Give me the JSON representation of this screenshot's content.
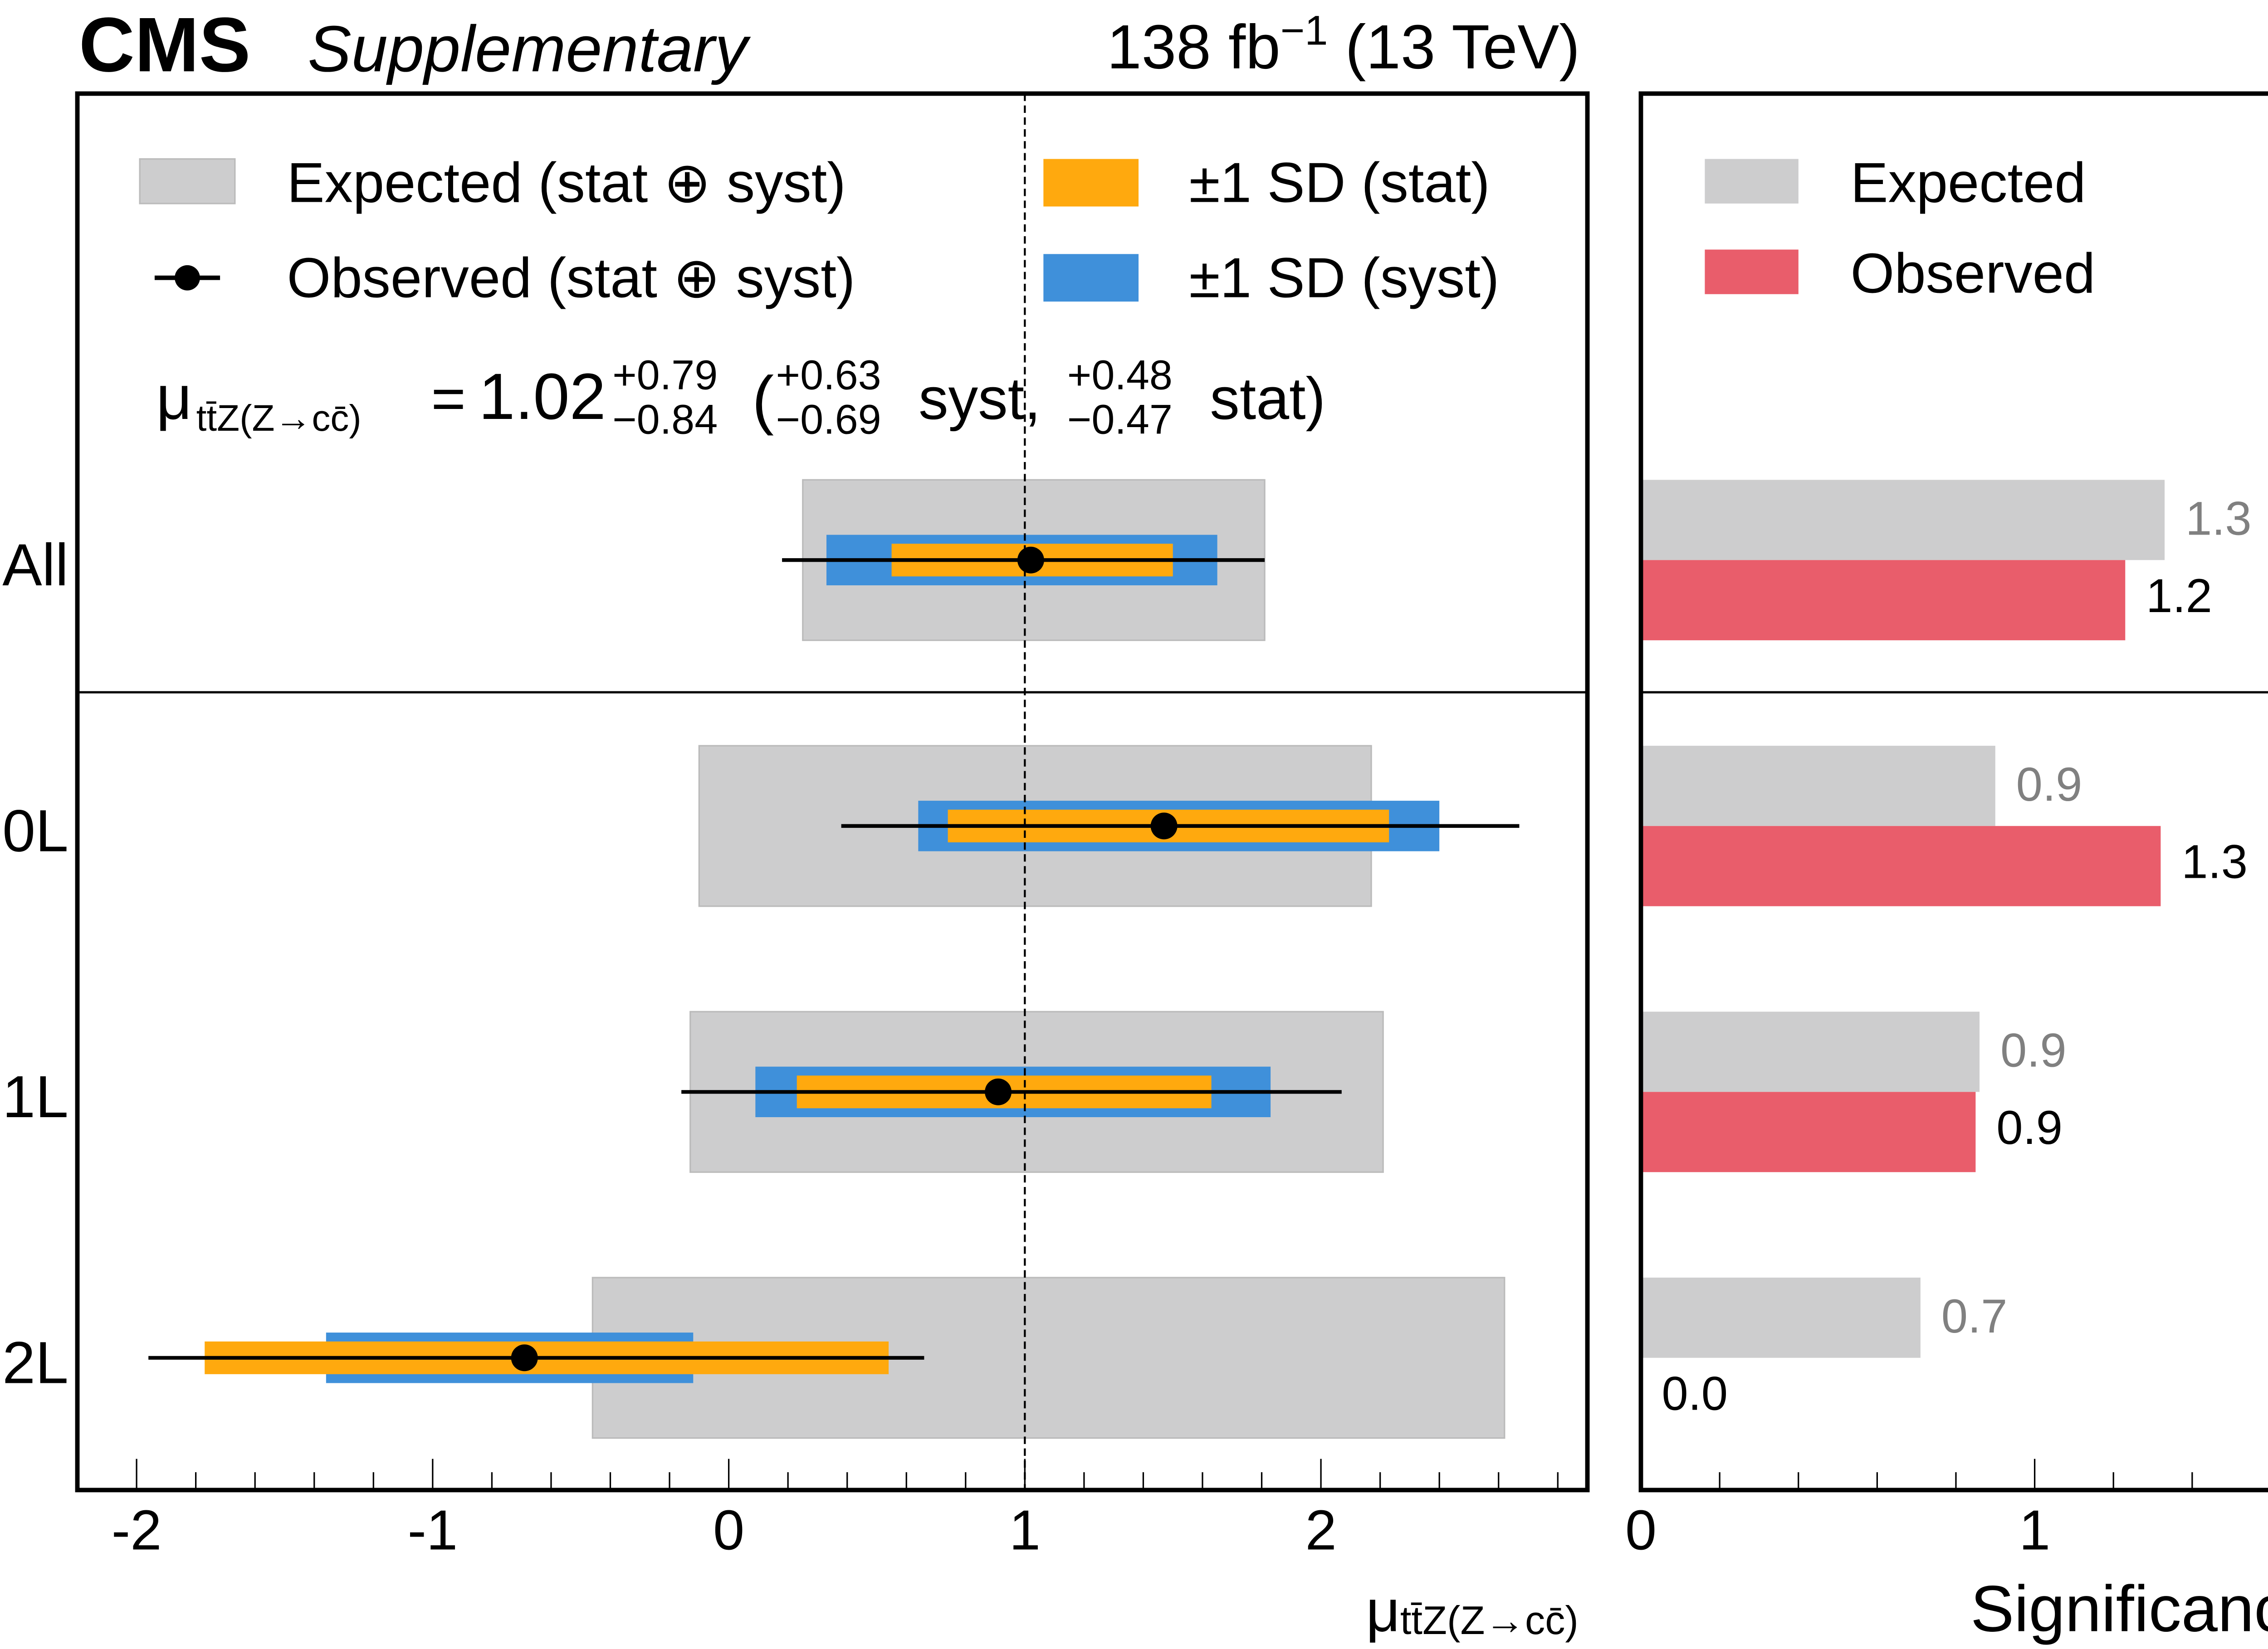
{
  "header": {
    "experiment": "CMS",
    "label": "Supplementary",
    "lumi": "138 fb",
    "lumi_exp": "−1",
    "energy": "(13 TeV)"
  },
  "legend_left": {
    "expected": "Expected (stat ⊕ syst)",
    "observed": "Observed (stat ⊕ syst)",
    "stat": "±1 SD (stat)",
    "syst": "±1 SD (syst)"
  },
  "legend_right": {
    "expected": "Expected",
    "observed": "Observed"
  },
  "result": {
    "mu": "μ",
    "sub": "tt̄Z(Z→cc̄)",
    "eq": "=",
    "value": "1.02",
    "tot_up": "+0.79",
    "tot_dn": "−0.84",
    "open": "(",
    "syst_up": "+0.63",
    "syst_dn": "−0.69",
    "syst_label": "syst,",
    "stat_up": "+0.48",
    "stat_dn": "−0.47",
    "stat_label": "stat)"
  },
  "colors": {
    "expected": "#cdcdce",
    "stat": "#ffa90e",
    "syst": "#3f90da",
    "observed_sig": "#e95d6b",
    "expected_label": "#808080"
  },
  "chart_data": [
    {
      "type": "forest",
      "xlabel_mu": "μ",
      "xlabel_sub": "tt̄Z(Z→cc̄)",
      "xlim": [
        -2.2,
        2.9
      ],
      "xticks": [
        "-2",
        "-1",
        "0",
        "1",
        "2"
      ],
      "reference_line": 1,
      "categories": [
        "All",
        "0L",
        "1L",
        "2L"
      ],
      "observed": [
        1.02,
        1.47,
        0.91,
        -0.69
      ],
      "total_interval": [
        [
          0.18,
          1.81
        ],
        [
          0.38,
          2.67
        ],
        [
          -0.16,
          2.07
        ],
        [
          -1.96,
          0.66
        ]
      ],
      "syst_interval": [
        [
          0.33,
          1.65
        ],
        [
          0.64,
          2.4
        ],
        [
          0.09,
          1.83
        ],
        [
          -1.36,
          -0.12
        ]
      ],
      "stat_interval": [
        [
          0.55,
          1.5
        ],
        [
          0.74,
          2.23
        ],
        [
          0.23,
          1.63
        ],
        [
          -1.77,
          0.54
        ]
      ],
      "expected_interval": [
        [
          0.25,
          1.81
        ],
        [
          -0.1,
          2.17
        ],
        [
          -0.13,
          2.21
        ],
        [
          -0.46,
          2.62
        ]
      ]
    },
    {
      "type": "bar",
      "orientation": "horizontal",
      "xlabel": "Significance",
      "xlim": [
        0,
        1.74
      ],
      "xticks": [
        "0",
        "1"
      ],
      "categories": [
        "All",
        "0L",
        "1L",
        "2L"
      ],
      "series": [
        {
          "name": "Expected",
          "values": [
            1.33,
            0.9,
            0.86,
            0.71
          ],
          "labels": [
            "1.3",
            "0.9",
            "0.9",
            "0.7"
          ]
        },
        {
          "name": "Observed",
          "values": [
            1.23,
            1.32,
            0.85,
            0.0
          ],
          "labels": [
            "1.2",
            "1.3",
            "0.9",
            "0.0"
          ]
        }
      ]
    }
  ]
}
